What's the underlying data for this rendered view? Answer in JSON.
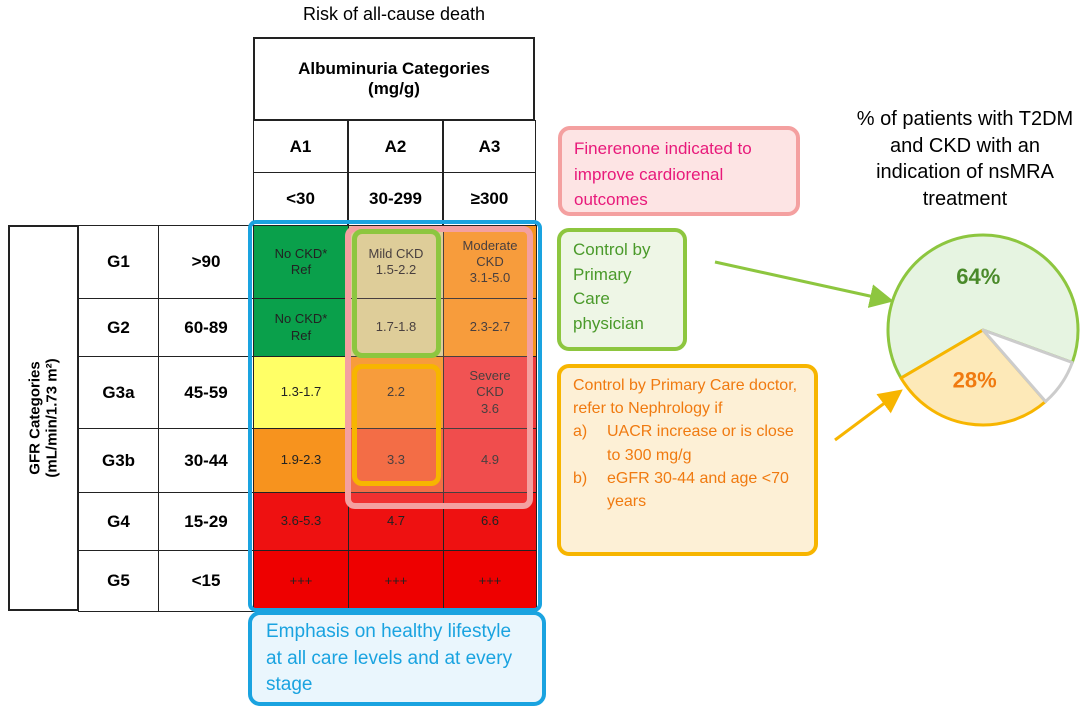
{
  "header": {
    "title": "Risk of all-cause death"
  },
  "table": {
    "albuminuria_header": "Albuminuria Categories (mg/g)",
    "gfr_header": [
      "GFR Categories",
      "(mL/min/1.73 m²)"
    ],
    "columns": [
      {
        "code": "A1",
        "range": "<30"
      },
      {
        "code": "A2",
        "range": "30-299"
      },
      {
        "code": "A3",
        "range": "≥300"
      }
    ],
    "rows": [
      {
        "code": "G1",
        "range": ">90",
        "cells": [
          "No CKD*\nRef",
          "Mild CKD\n1.5-2.2",
          "Moderate\nCKD\n3.1-5.0"
        ],
        "colors": [
          "#0aa04b",
          "#d8cf8f",
          "#f7931e"
        ]
      },
      {
        "code": "G2",
        "range": "60-89",
        "cells": [
          "No CKD*\nRef",
          "1.7-1.8",
          "2.3-2.7"
        ],
        "colors": [
          "#0aa04b",
          "#d8cf8f",
          "#f7931e"
        ]
      },
      {
        "code": "G3a",
        "range": "45-59",
        "cells": [
          "1.3-1.7",
          "2.2",
          "Severe\nCKD\n3.6"
        ],
        "colors": [
          "#ffff66",
          "#f7931e",
          "#f03a3a"
        ]
      },
      {
        "code": "G3b",
        "range": "30-44",
        "cells": [
          "1.9-2.3",
          "3.3",
          "4.9"
        ],
        "colors": [
          "#f7931e",
          "#f25a2a",
          "#ee3333"
        ]
      },
      {
        "code": "G4",
        "range": "15-29",
        "cells": [
          "3.6-5.3",
          "4.7",
          "6.6"
        ],
        "colors": [
          "#ee1111",
          "#ee1111",
          "#ee1111"
        ]
      },
      {
        "code": "G5",
        "range": "<15",
        "cells": [
          "+++",
          "+++",
          "+++"
        ],
        "colors": [
          "#ee0000",
          "#ee0000",
          "#ee0000"
        ]
      }
    ]
  },
  "callouts": {
    "finerenone": "Finerenone indicated to improve cardiorenal outcomes",
    "primary_care": "Control by Primary Care physician",
    "nephrology": {
      "text": "Control by Primary Care doctor, refer to Nephrology if",
      "items": [
        {
          "marker": "a)",
          "text": "UACR increase or is close to 300 mg/g"
        },
        {
          "marker": "b)",
          "text": "eGFR 30-44 and age <70 years"
        }
      ]
    },
    "lifestyle": "Emphasis on healthy lifestyle at all care levels and at every stage"
  },
  "chart_data": {
    "type": "pie",
    "title": "% of patients with T2DM and CKD with an indication of nsMRA treatment",
    "values": [
      64,
      28,
      8
    ],
    "value_labels": [
      "64%",
      "28%",
      null
    ],
    "colors": [
      "#e6f4e1",
      "#fde9b8",
      "#ffffff"
    ],
    "edgecolors": [
      "#8dc63f",
      "#f7b500",
      "#cccccc"
    ],
    "label_colors": [
      "#4a8a2a",
      "#f07a10",
      null
    ]
  }
}
